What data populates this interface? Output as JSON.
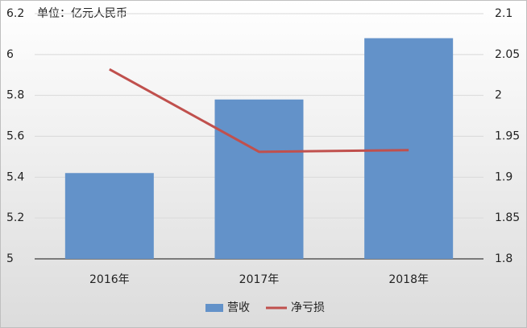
{
  "chart_data": {
    "type": "bar",
    "annotation": "单位：亿元人民币",
    "categories": [
      "2016年",
      "2017年",
      "2018年"
    ],
    "series": [
      {
        "name": "营收",
        "color": "#6392c9",
        "values": [
          5.42,
          5.78,
          6.08
        ]
      },
      {
        "name": "净亏损",
        "color": "#c0504d",
        "type": "line",
        "axis": "y2",
        "values": [
          2.032,
          1.931,
          1.933
        ]
      }
    ],
    "ylim": [
      5,
      6.2
    ],
    "yticks": [
      5,
      5.2,
      5.4,
      5.6,
      5.8,
      6,
      6.2
    ],
    "y2lim": [
      1.8,
      2.1
    ],
    "y2ticks": [
      1.8,
      1.85,
      1.9,
      1.95,
      2,
      2.05,
      2.1
    ],
    "grid": true,
    "legend": "bottom"
  }
}
